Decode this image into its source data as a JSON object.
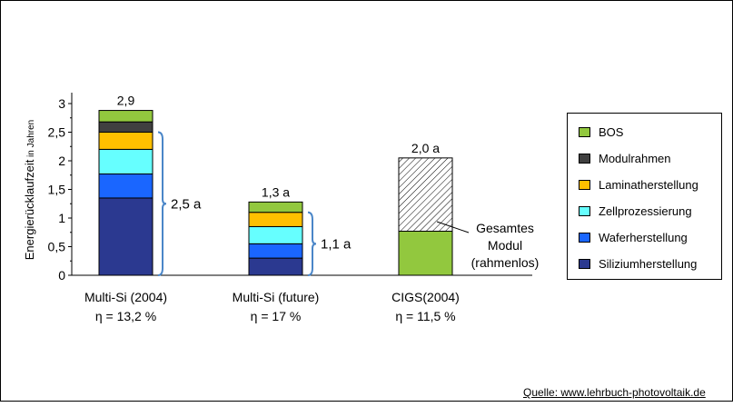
{
  "chart_data": {
    "type": "bar",
    "stacked": true,
    "ylabel": "Energierücklaufzeit in Jahren",
    "ylim": [
      0,
      3
    ],
    "yticks": [
      "0",
      "0,5",
      "1",
      "1,5",
      "2",
      "2,5",
      "3"
    ],
    "categories": [
      "Multi-Si (2004)",
      "Multi-Si (future)",
      "CIGS(2004)"
    ],
    "category_efficiency": [
      "η = 13,2 %",
      "η = 17 %",
      "η = 11,5 %"
    ],
    "totals": [
      "2,9",
      "1,3 a",
      "2,0 a"
    ],
    "series": [
      {
        "name": "Siliziumherstellung",
        "color": "#2b3990",
        "values": [
          1.35,
          0.3,
          0
        ]
      },
      {
        "name": "Waferherstellung",
        "color": "#1a66ff",
        "values": [
          0.42,
          0.25,
          0
        ]
      },
      {
        "name": "Zellprozessierung",
        "color": "#66ffff",
        "values": [
          0.43,
          0.3,
          0
        ]
      },
      {
        "name": "Laminatherstellung",
        "color": "#ffc000",
        "values": [
          0.3,
          0.25,
          0
        ]
      },
      {
        "name": "Modulrahmen",
        "color": "#404040",
        "values": [
          0.18,
          0,
          0
        ]
      },
      {
        "name": "BOS",
        "color": "#92c83e",
        "values": [
          0.2,
          0.18,
          0.77
        ]
      },
      {
        "name": "Gesamtes Modul (rahmenlos)",
        "color": "#ffffff",
        "pattern": "hatched",
        "values": [
          0,
          0,
          1.28
        ]
      }
    ],
    "braces": [
      {
        "category": "Multi-Si (2004)",
        "from": 0,
        "to": 2.5,
        "label": "2,5 a"
      },
      {
        "category": "Multi-Si (future)",
        "from": 0,
        "to": 1.1,
        "label": "1,1 a"
      }
    ],
    "annotation_lines": [
      "Gesamtes",
      "Modul",
      "(rahmenlos)"
    ],
    "legend_order": [
      "BOS",
      "Modulrahmen",
      "Laminatherstellung",
      "Zellprozessierung",
      "Waferherstellung",
      "Siliziumherstellung"
    ],
    "grid": false,
    "legend_position": "right"
  },
  "source": "Quelle: www.lehrbuch-photovoltaik.de"
}
